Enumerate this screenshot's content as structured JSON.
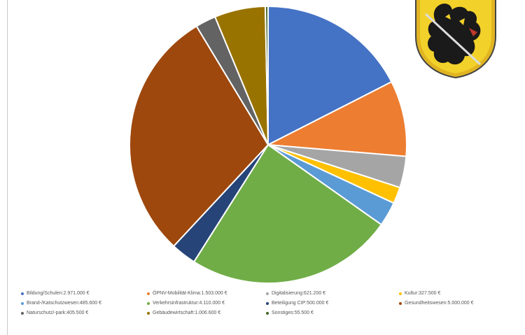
{
  "chart_data": {
    "type": "pie",
    "legend_position": "bottom",
    "start_angle_deg": 0,
    "slices": [
      {
        "label": "Bildung/Schulen",
        "value": 2971000,
        "value_text": "2.971.000 €",
        "color": "#4472c4"
      },
      {
        "label": "ÖPNV-Mobilität-Klima",
        "value": 1503000,
        "value_text": "1.503.000 €",
        "color": "#ed7d31"
      },
      {
        "label": "Digitalisierung",
        "value": 621200,
        "value_text": "621.200 €",
        "color": "#a5a5a5"
      },
      {
        "label": "Kultur",
        "value": 327500,
        "value_text": "327.500 €",
        "color": "#ffc000"
      },
      {
        "label": "Brand-/Katschutzwesen",
        "value": 485600,
        "value_text": "485.600 €",
        "color": "#5b9bd5"
      },
      {
        "label": "Verkehrsinfrastruktur",
        "value": 4110000,
        "value_text": "4.110.000 €",
        "color": "#70ad47"
      },
      {
        "label": "Beteiligung CIP",
        "value": 500000,
        "value_text": "500.000 €",
        "color": "#264478"
      },
      {
        "label": "Gesundheitswesen",
        "value": 5000000,
        "value_text": "5.000.000 €",
        "color": "#9e480e"
      },
      {
        "label": "Naturschutz/-park",
        "value": 405500,
        "value_text": "405.500 €",
        "color": "#636363"
      },
      {
        "label": "Gebäudewirtschaft",
        "value": 1006600,
        "value_text": "1.006.600 €",
        "color": "#997300"
      },
      {
        "label": "Sonstiges",
        "value": 55500,
        "value_text": "55.500 €",
        "color": "#43682b"
      }
    ]
  },
  "coat_of_arms": {
    "icon": "lion-coat-of-arms-icon",
    "field_color": "#f2d12a",
    "charge_color": "#1a1a1a"
  }
}
